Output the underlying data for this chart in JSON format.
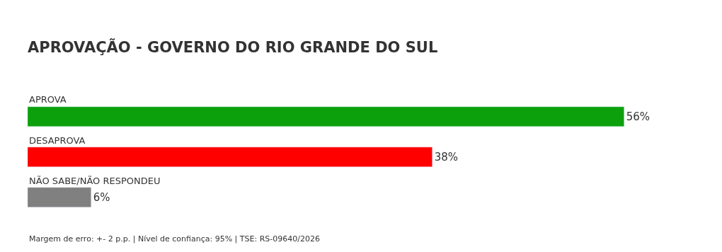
{
  "chart_data": {
    "type": "bar",
    "orientation": "horizontal",
    "title": "APROVAÇÃO - GOVERNO DO RIO GRANDE DO SUL",
    "categories": [
      "APROVA",
      "DESAPROVA",
      "NÃO SABE/NÃO RESPONDEU"
    ],
    "values": [
      56,
      38,
      6
    ],
    "colors": [
      "#0ca10c",
      "#ff0000",
      "#808080"
    ],
    "value_labels": [
      "56%",
      "38%",
      "6%"
    ],
    "annotations": [
      "Margem de erro: +- 2 p.p. | Nível de confiança: 95% | TSE: RS-09640/2026"
    ]
  }
}
